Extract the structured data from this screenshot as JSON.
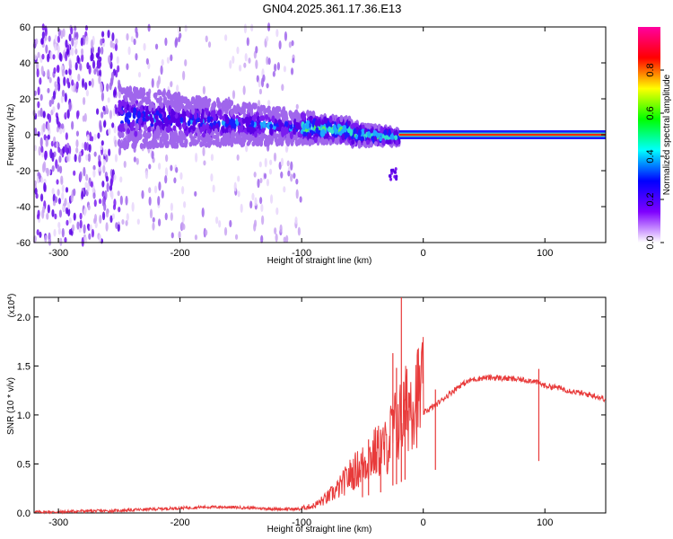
{
  "title": "GN04.2025.361.17.36.E13",
  "chart_data": [
    {
      "type": "heatmap",
      "xlabel": "Height of straight line (km)",
      "ylabel": "Frequency (Hz)",
      "xlim": [
        -320,
        150
      ],
      "ylim": [
        -60,
        60
      ],
      "xticks": [
        -300,
        -200,
        -100,
        0,
        100
      ],
      "yticks": [
        60,
        40,
        20,
        0,
        -20,
        -40,
        -60
      ],
      "colorbar": {
        "label": "Normalized spectral amplitude",
        "range": [
          0,
          1
        ],
        "ticks": [
          "0.0",
          "0.2",
          "0.4",
          "0.6",
          "0.8"
        ],
        "colors": [
          "#ffffff",
          "#7f00ff",
          "#0000ff",
          "#00ffff",
          "#00ff00",
          "#ffff00",
          "#ff0000",
          "#ff00a0"
        ]
      },
      "grid": false
    },
    {
      "type": "line",
      "xlabel": "Height of straight line (km)",
      "ylabel": "SNR (10 * v/v)",
      "multiplier": "(x10",
      "multiplier_exp": "4",
      "multiplier_close": ")",
      "xlim": [
        -320,
        150
      ],
      "ylim": [
        0,
        2.2
      ],
      "xticks": [
        -300,
        -200,
        -100,
        0,
        100
      ],
      "yticks": [
        "0.0",
        "0.5",
        "1.0",
        "1.5",
        "2.0"
      ],
      "series_color": "#e83a3a",
      "x": [
        -320,
        -300,
        -280,
        -260,
        -240,
        -220,
        -200,
        -180,
        -160,
        -140,
        -120,
        -100,
        -90,
        -80,
        -70,
        -60,
        -50,
        -40,
        -30,
        -25,
        -20,
        -15,
        -10,
        0,
        10,
        20,
        30,
        40,
        50,
        60,
        70,
        80,
        90,
        100,
        110,
        120,
        130,
        140,
        150
      ],
      "y": [
        0.01,
        0.01,
        0.02,
        0.02,
        0.03,
        0.04,
        0.05,
        0.06,
        0.06,
        0.05,
        0.04,
        0.04,
        0.06,
        0.12,
        0.2,
        0.32,
        0.4,
        0.5,
        0.55,
        0.7,
        0.75,
        0.85,
        0.95,
        1.02,
        1.1,
        1.2,
        1.3,
        1.36,
        1.38,
        1.38,
        1.37,
        1.36,
        1.35,
        1.3,
        1.28,
        1.25,
        1.22,
        1.2,
        1.16
      ],
      "spikes": [
        {
          "x": -50,
          "y": 0.62
        },
        {
          "x": -45,
          "y": 0.75
        },
        {
          "x": -35,
          "y": 0.85
        },
        {
          "x": -25,
          "y": 1.63
        },
        {
          "x": -22,
          "y": 1.48
        },
        {
          "x": -18,
          "y": 2.2
        },
        {
          "x": -15,
          "y": 1.05
        },
        {
          "x": 10,
          "y": 1.26
        },
        {
          "x": 95,
          "y": 1.47
        }
      ],
      "grid": false
    }
  ]
}
